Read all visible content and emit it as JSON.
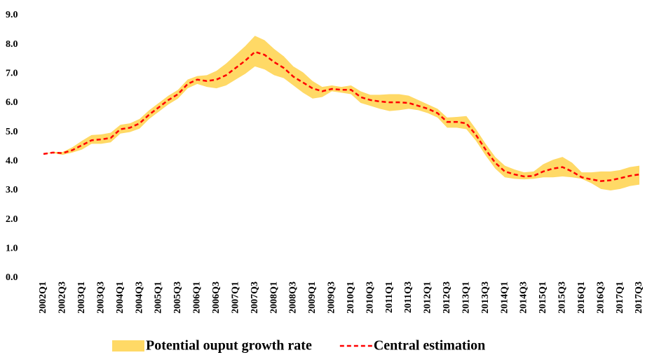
{
  "chart_data": {
    "type": "range-line",
    "categories": [
      "2002Q1",
      null,
      "2002Q3",
      null,
      "2003Q1",
      null,
      "2003Q3",
      null,
      "2004Q1",
      null,
      "2004Q3",
      null,
      "2005Q1",
      null,
      "2005Q3",
      null,
      "2006Q1",
      null,
      "2006Q3",
      null,
      "2007Q1",
      null,
      "2007Q3",
      null,
      "2008Q1",
      null,
      "2008Q3",
      null,
      "2009Q1",
      null,
      "2009Q3",
      null,
      "2010Q1",
      null,
      "2010Q3",
      null,
      "2011Q1",
      null,
      "2011Q3",
      null,
      "2012Q1",
      null,
      "2012Q3",
      null,
      "2013Q1",
      null,
      "2013Q3",
      null,
      "2014Q1",
      null,
      "2014Q3",
      null,
      "2015Q1",
      null,
      "2015Q3",
      null,
      "2016Q1",
      null,
      "2016Q3",
      null,
      "2017Q1",
      null,
      "2017Q3"
    ],
    "series": [
      {
        "name": "Potential ouput growth rate",
        "color": "#ffd966",
        "high": [
          4.25,
          4.32,
          4.32,
          4.48,
          4.7,
          4.9,
          4.92,
          4.98,
          5.25,
          5.3,
          5.45,
          5.75,
          6.0,
          6.25,
          6.45,
          6.8,
          6.92,
          6.95,
          7.1,
          7.35,
          7.65,
          7.95,
          8.3,
          8.15,
          7.85,
          7.6,
          7.25,
          7.05,
          6.75,
          6.55,
          6.6,
          6.55,
          6.6,
          6.4,
          6.28,
          6.28,
          6.3,
          6.3,
          6.25,
          6.1,
          5.95,
          5.8,
          5.5,
          5.52,
          5.55,
          5.1,
          4.6,
          4.15,
          3.85,
          3.72,
          3.62,
          3.65,
          3.9,
          4.05,
          4.15,
          3.95,
          3.62,
          3.62,
          3.65,
          3.65,
          3.7,
          3.8,
          3.85
        ],
        "low": [
          4.25,
          4.28,
          4.22,
          4.3,
          4.4,
          4.6,
          4.6,
          4.65,
          4.95,
          5.0,
          5.12,
          5.45,
          5.7,
          5.95,
          6.15,
          6.5,
          6.65,
          6.55,
          6.5,
          6.6,
          6.8,
          7.0,
          7.25,
          7.15,
          6.95,
          6.85,
          6.6,
          6.35,
          6.15,
          6.2,
          6.4,
          6.35,
          6.3,
          6.0,
          5.9,
          5.8,
          5.72,
          5.75,
          5.8,
          5.75,
          5.65,
          5.5,
          5.15,
          5.15,
          5.1,
          4.7,
          4.2,
          3.75,
          3.45,
          3.4,
          3.38,
          3.4,
          3.45,
          3.45,
          3.48,
          3.45,
          3.4,
          3.25,
          3.05,
          3.0,
          3.05,
          3.15,
          3.2
        ]
      },
      {
        "name": "Central estimation",
        "color": "#ff0000",
        "dashed": true,
        "values": [
          4.25,
          4.3,
          4.28,
          4.38,
          4.55,
          4.72,
          4.75,
          4.8,
          5.1,
          5.15,
          5.3,
          5.6,
          5.85,
          6.1,
          6.3,
          6.65,
          6.8,
          6.75,
          6.8,
          6.95,
          7.2,
          7.45,
          7.75,
          7.65,
          7.4,
          7.2,
          6.9,
          6.7,
          6.5,
          6.4,
          6.48,
          6.45,
          6.45,
          6.2,
          6.1,
          6.05,
          6.02,
          6.02,
          6.0,
          5.9,
          5.8,
          5.65,
          5.35,
          5.35,
          5.3,
          4.9,
          4.4,
          3.95,
          3.65,
          3.55,
          3.48,
          3.5,
          3.65,
          3.75,
          3.8,
          3.65,
          3.45,
          3.38,
          3.32,
          3.35,
          3.42,
          3.5,
          3.55
        ]
      }
    ],
    "ylim": [
      0,
      9
    ],
    "yticks": [
      {
        "value": 0,
        "label": "0.0"
      },
      {
        "value": 1,
        "label": "1.0"
      },
      {
        "value": 2,
        "label": "2.0"
      },
      {
        "value": 3,
        "label": "3.0"
      },
      {
        "value": 4,
        "label": "4.0"
      },
      {
        "value": 5,
        "label": "5.0"
      },
      {
        "value": 6,
        "label": "6.0"
      },
      {
        "value": 7,
        "label": "7.0"
      },
      {
        "value": 8,
        "label": "8.0"
      },
      {
        "value": 9,
        "label": "9.0"
      }
    ],
    "grid": false,
    "legend": "bottom"
  }
}
